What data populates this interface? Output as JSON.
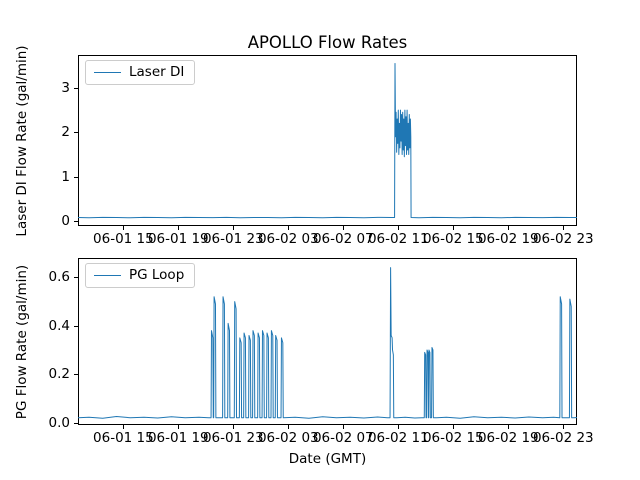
{
  "figure_title": "APOLLO Flow Rates",
  "chart_data": [
    {
      "type": "line",
      "title": "APOLLO Flow Rates",
      "ylabel": "Laser DI Flow Rate (gal/min)",
      "legend": [
        "Laser DI"
      ],
      "legend_position": "upper left",
      "grid": false,
      "line_color": "#1f77b4",
      "x_encoding": "hours since 06-01 00:00 GMT",
      "xlim": [
        11.7,
        48.0
      ],
      "ylim": [
        -0.11,
        3.74
      ],
      "xticks": [
        {
          "value": 15,
          "label": "06-01 15"
        },
        {
          "value": 19,
          "label": "06-01 19"
        },
        {
          "value": 23,
          "label": "06-01 23"
        },
        {
          "value": 27,
          "label": "06-02 03"
        },
        {
          "value": 31,
          "label": "06-02 07"
        },
        {
          "value": 35,
          "label": "06-02 11"
        },
        {
          "value": 39,
          "label": "06-02 15"
        },
        {
          "value": 43,
          "label": "06-02 19"
        },
        {
          "value": 47,
          "label": "06-02 23"
        }
      ],
      "yticks": [
        {
          "value": 0,
          "label": "0"
        },
        {
          "value": 1,
          "label": "1"
        },
        {
          "value": 2,
          "label": "2"
        },
        {
          "value": 3,
          "label": "3"
        }
      ],
      "series": [
        {
          "name": "Laser DI",
          "points": [
            [
              11.7,
              0.08
            ],
            [
              12.5,
              0.075
            ],
            [
              13.5,
              0.085
            ],
            [
              14.5,
              0.08
            ],
            [
              15.5,
              0.075
            ],
            [
              16.5,
              0.085
            ],
            [
              17.5,
              0.08
            ],
            [
              18.5,
              0.075
            ],
            [
              19.5,
              0.085
            ],
            [
              20.5,
              0.08
            ],
            [
              21.5,
              0.078
            ],
            [
              22.5,
              0.085
            ],
            [
              23.5,
              0.075
            ],
            [
              24.5,
              0.082
            ],
            [
              25.5,
              0.08
            ],
            [
              26.5,
              0.076
            ],
            [
              27.5,
              0.085
            ],
            [
              28.5,
              0.08
            ],
            [
              29.5,
              0.075
            ],
            [
              30.5,
              0.083
            ],
            [
              31.5,
              0.08
            ],
            [
              32.5,
              0.077
            ],
            [
              33.5,
              0.084
            ],
            [
              34.5,
              0.08
            ],
            [
              34.73,
              0.08
            ],
            [
              34.76,
              3.55
            ],
            [
              34.8,
              1.9
            ],
            [
              34.84,
              2.45
            ],
            [
              34.88,
              1.55
            ],
            [
              34.92,
              2.3
            ],
            [
              34.96,
              1.75
            ],
            [
              35.0,
              2.5
            ],
            [
              35.04,
              1.5
            ],
            [
              35.08,
              2.2
            ],
            [
              35.12,
              1.65
            ],
            [
              35.16,
              2.5
            ],
            [
              35.2,
              1.8
            ],
            [
              35.24,
              2.4
            ],
            [
              35.28,
              1.5
            ],
            [
              35.32,
              2.45
            ],
            [
              35.36,
              1.6
            ],
            [
              35.4,
              2.3
            ],
            [
              35.44,
              1.45
            ],
            [
              35.48,
              2.5
            ],
            [
              35.52,
              1.7
            ],
            [
              35.56,
              2.35
            ],
            [
              35.6,
              1.5
            ],
            [
              35.64,
              2.5
            ],
            [
              35.68,
              1.6
            ],
            [
              35.72,
              2.2
            ],
            [
              35.76,
              1.5
            ],
            [
              35.8,
              2.4
            ],
            [
              35.84,
              1.65
            ],
            [
              35.88,
              2.3
            ],
            [
              35.91,
              1.9
            ],
            [
              35.93,
              0.08
            ],
            [
              36.5,
              0.075
            ],
            [
              37.5,
              0.085
            ],
            [
              38.5,
              0.08
            ],
            [
              39.5,
              0.076
            ],
            [
              40.5,
              0.084
            ],
            [
              41.5,
              0.08
            ],
            [
              42.5,
              0.075
            ],
            [
              43.5,
              0.085
            ],
            [
              44.5,
              0.08
            ],
            [
              45.5,
              0.078
            ],
            [
              46.5,
              0.083
            ],
            [
              47.5,
              0.08
            ],
            [
              48.0,
              0.08
            ]
          ]
        }
      ]
    },
    {
      "type": "line",
      "xlabel": "Date (GMT)",
      "ylabel": "PG Flow Rate (gal/min)",
      "legend": [
        "PG Loop"
      ],
      "legend_position": "upper left",
      "grid": false,
      "line_color": "#1f77b4",
      "x_encoding": "hours since 06-01 00:00 GMT",
      "xlim": [
        11.7,
        48.0
      ],
      "ylim": [
        -0.01,
        0.68
      ],
      "xticks": [
        {
          "value": 15,
          "label": "06-01 15"
        },
        {
          "value": 19,
          "label": "06-01 19"
        },
        {
          "value": 23,
          "label": "06-01 23"
        },
        {
          "value": 27,
          "label": "06-02 03"
        },
        {
          "value": 31,
          "label": "06-02 07"
        },
        {
          "value": 35,
          "label": "06-02 11"
        },
        {
          "value": 39,
          "label": "06-02 15"
        },
        {
          "value": 43,
          "label": "06-02 19"
        },
        {
          "value": 47,
          "label": "06-02 23"
        }
      ],
      "yticks": [
        {
          "value": 0.0,
          "label": "0.0"
        },
        {
          "value": 0.2,
          "label": "0.2"
        },
        {
          "value": 0.4,
          "label": "0.4"
        },
        {
          "value": 0.6,
          "label": "0.6"
        }
      ],
      "series": [
        {
          "name": "PG Loop",
          "points": [
            [
              11.7,
              0.02
            ],
            [
              12.5,
              0.022
            ],
            [
              13.5,
              0.018
            ],
            [
              14.5,
              0.025
            ],
            [
              15.5,
              0.02
            ],
            [
              16.5,
              0.022
            ],
            [
              17.5,
              0.019
            ],
            [
              18.5,
              0.024
            ],
            [
              19.5,
              0.02
            ],
            [
              20.5,
              0.022
            ],
            [
              21.2,
              0.02
            ],
            [
              21.38,
              0.02
            ],
            [
              21.41,
              0.38
            ],
            [
              21.51,
              0.35
            ],
            [
              21.54,
              0.02
            ],
            [
              21.57,
              0.02
            ],
            [
              21.6,
              0.52
            ],
            [
              21.7,
              0.49
            ],
            [
              21.73,
              0.02
            ],
            [
              22.22,
              0.02
            ],
            [
              22.25,
              0.52
            ],
            [
              22.35,
              0.49
            ],
            [
              22.38,
              0.02
            ],
            [
              22.59,
              0.02
            ],
            [
              22.62,
              0.41
            ],
            [
              22.72,
              0.38
            ],
            [
              22.75,
              0.02
            ],
            [
              23.07,
              0.02
            ],
            [
              23.1,
              0.5
            ],
            [
              23.2,
              0.47
            ],
            [
              23.23,
              0.02
            ],
            [
              23.44,
              0.02
            ],
            [
              23.47,
              0.35
            ],
            [
              23.57,
              0.33
            ],
            [
              23.6,
              0.02
            ],
            [
              23.75,
              0.02
            ],
            [
              23.78,
              0.37
            ],
            [
              23.88,
              0.35
            ],
            [
              23.91,
              0.02
            ],
            [
              24.11,
              0.02
            ],
            [
              24.14,
              0.36
            ],
            [
              24.24,
              0.34
            ],
            [
              24.27,
              0.02
            ],
            [
              24.4,
              0.02
            ],
            [
              24.43,
              0.38
            ],
            [
              24.53,
              0.36
            ],
            [
              24.56,
              0.02
            ],
            [
              24.77,
              0.02
            ],
            [
              24.8,
              0.37
            ],
            [
              24.9,
              0.35
            ],
            [
              24.93,
              0.02
            ],
            [
              25.09,
              0.02
            ],
            [
              25.12,
              0.38
            ],
            [
              25.22,
              0.36
            ],
            [
              25.25,
              0.02
            ],
            [
              25.42,
              0.02
            ],
            [
              25.45,
              0.37
            ],
            [
              25.55,
              0.35
            ],
            [
              25.58,
              0.02
            ],
            [
              25.74,
              0.02
            ],
            [
              25.77,
              0.38
            ],
            [
              25.87,
              0.36
            ],
            [
              25.9,
              0.02
            ],
            [
              26.05,
              0.02
            ],
            [
              26.08,
              0.36
            ],
            [
              26.18,
              0.34
            ],
            [
              26.21,
              0.02
            ],
            [
              26.47,
              0.02
            ],
            [
              26.5,
              0.35
            ],
            [
              26.6,
              0.33
            ],
            [
              26.63,
              0.02
            ],
            [
              27.5,
              0.022
            ],
            [
              28.5,
              0.018
            ],
            [
              29.5,
              0.024
            ],
            [
              30.5,
              0.02
            ],
            [
              31.5,
              0.022
            ],
            [
              32.5,
              0.019
            ],
            [
              33.5,
              0.023
            ],
            [
              34.2,
              0.02
            ],
            [
              34.4,
              0.02
            ],
            [
              34.44,
              0.64
            ],
            [
              34.48,
              0.36
            ],
            [
              34.55,
              0.35
            ],
            [
              34.58,
              0.3
            ],
            [
              34.64,
              0.28
            ],
            [
              34.67,
              0.02
            ],
            [
              34.9,
              0.02
            ],
            [
              35.5,
              0.022
            ],
            [
              36.2,
              0.019
            ],
            [
              36.7,
              0.02
            ],
            [
              36.89,
              0.02
            ],
            [
              36.92,
              0.29
            ],
            [
              36.99,
              0.28
            ],
            [
              37.02,
              0.02
            ],
            [
              37.06,
              0.02
            ],
            [
              37.09,
              0.3
            ],
            [
              37.16,
              0.29
            ],
            [
              37.19,
              0.02
            ],
            [
              37.21,
              0.02
            ],
            [
              37.23,
              0.3
            ],
            [
              37.3,
              0.29
            ],
            [
              37.33,
              0.02
            ],
            [
              37.42,
              0.02
            ],
            [
              37.45,
              0.31
            ],
            [
              37.52,
              0.3
            ],
            [
              37.55,
              0.02
            ],
            [
              37.8,
              0.02
            ],
            [
              38.5,
              0.022
            ],
            [
              39.5,
              0.018
            ],
            [
              40.5,
              0.024
            ],
            [
              41.5,
              0.02
            ],
            [
              42.5,
              0.022
            ],
            [
              43.5,
              0.019
            ],
            [
              44.5,
              0.023
            ],
            [
              45.5,
              0.02
            ],
            [
              46.3,
              0.022
            ],
            [
              46.75,
              0.02
            ],
            [
              46.78,
              0.52
            ],
            [
              46.88,
              0.49
            ],
            [
              46.91,
              0.02
            ],
            [
              47.2,
              0.02
            ],
            [
              47.45,
              0.02
            ],
            [
              47.48,
              0.51
            ],
            [
              47.58,
              0.48
            ],
            [
              47.61,
              0.02
            ],
            [
              47.8,
              0.02
            ],
            [
              48.0,
              0.021
            ]
          ]
        }
      ]
    }
  ]
}
